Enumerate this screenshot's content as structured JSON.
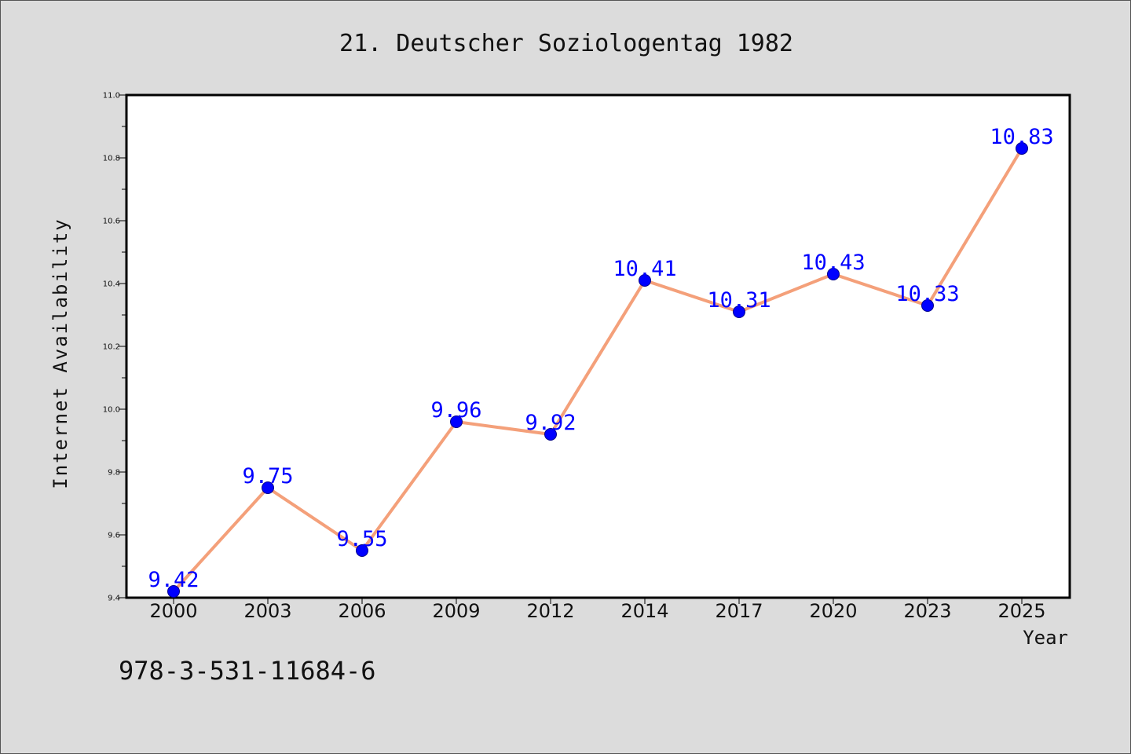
{
  "chart_data": {
    "type": "line",
    "title": "21. Deutscher Soziologentag 1982",
    "xlabel": "Year",
    "ylabel": "Internet Availability",
    "categories": [
      "2000",
      "2003",
      "2006",
      "2009",
      "2012",
      "2014",
      "2017",
      "2020",
      "2023",
      "2025"
    ],
    "values": [
      9.42,
      9.75,
      9.55,
      9.96,
      9.92,
      10.41,
      10.31,
      10.43,
      10.33,
      10.83
    ],
    "data_labels": [
      "9.42",
      "9.75",
      "9.55",
      "9.96",
      "9.92",
      "10.41",
      "10.31",
      "10.43",
      "10.33",
      "10.83"
    ],
    "ylim": [
      9.4,
      11.0
    ],
    "yticks": [
      9.4,
      9.6,
      9.8,
      10.0,
      10.2,
      10.4,
      10.6,
      10.8,
      11.0
    ],
    "ytick_labels": [
      "9.4",
      "9.6",
      "9.8",
      "10.0",
      "10.2",
      "10.4",
      "10.6",
      "10.8",
      "11.0"
    ],
    "grid": false,
    "line_color": "#f4a07a",
    "marker_color": "#0000ff",
    "label_color": "#0000ff",
    "plot_background": "#ffffff",
    "page_background": "#dcdcdc"
  },
  "footer": {
    "isbn": "978-3-531-11684-6"
  }
}
